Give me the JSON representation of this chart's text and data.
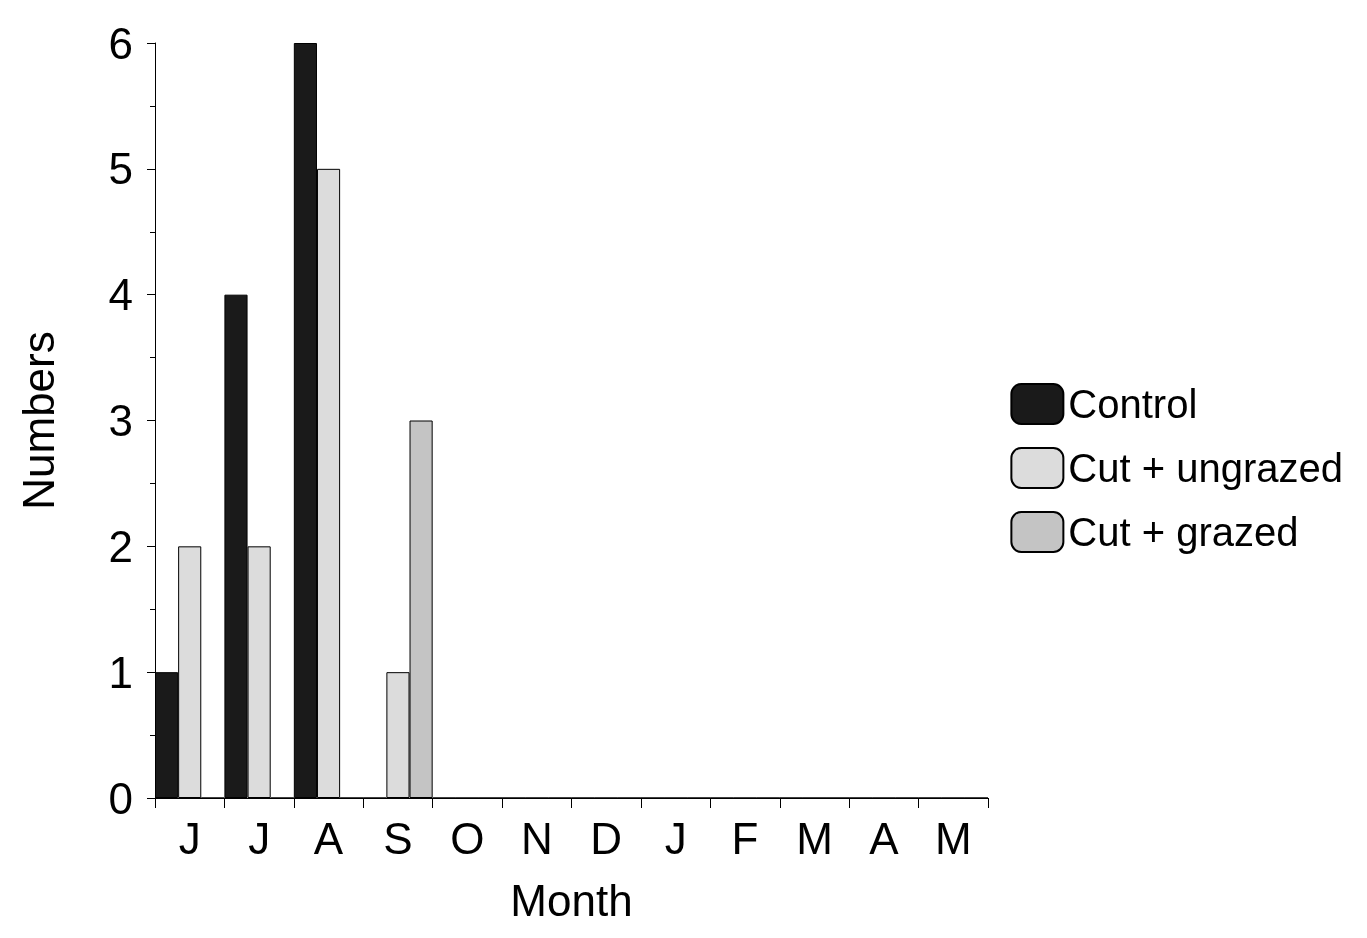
{
  "chart_data": {
    "type": "bar",
    "xlabel": "Month",
    "ylabel": "Numbers",
    "categories": [
      "J",
      "J",
      "A",
      "S",
      "O",
      "N",
      "D",
      "J",
      "F",
      "M",
      "A",
      "M"
    ],
    "series": [
      {
        "name": "Control",
        "color": "#1a1a1a",
        "values": [
          1,
          4,
          6,
          0,
          0,
          0,
          0,
          0,
          0,
          0,
          0,
          0
        ]
      },
      {
        "name": "Cut + ungrazed",
        "color": "#dcdcdc",
        "values": [
          2,
          2,
          5,
          1,
          0,
          0,
          0,
          0,
          0,
          0,
          0,
          0
        ]
      },
      {
        "name": "Cut + grazed",
        "color": "#c4c4c4",
        "values": [
          0,
          0,
          0,
          3,
          0,
          0,
          0,
          0,
          0,
          0,
          0,
          0
        ]
      }
    ],
    "ylim": [
      0,
      6
    ],
    "yticks": [
      0,
      1,
      2,
      3,
      4,
      5,
      6
    ],
    "grid": false,
    "legend": "right"
  }
}
